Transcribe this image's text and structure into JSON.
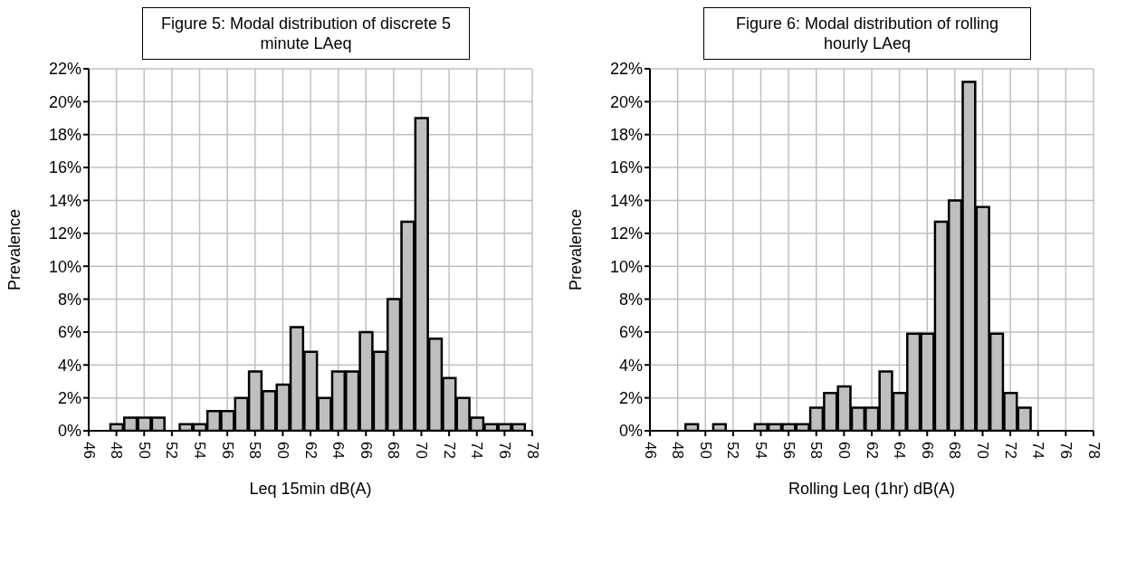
{
  "chart_data": [
    {
      "type": "histogram",
      "title": "Figure 5: Modal distribution of discrete 5 minute LAeq",
      "xlabel": "Leq 15min dB(A)",
      "ylabel": "Prevalence",
      "color": "#bfbfbf",
      "bins": [
        47.5,
        48.5,
        49.5,
        50.5,
        51.5,
        52.5,
        53.5,
        54.5,
        55.5,
        56.5,
        57.5,
        58.5,
        59.5,
        60.5,
        61.5,
        62.5,
        63.5,
        64.5,
        65.5,
        66.5,
        67.5,
        68.5,
        69.5,
        70.5,
        71.5,
        72.5,
        73.5,
        74.5,
        75.5,
        76.5,
        77.5
      ],
      "values": [
        0.4,
        0.8,
        0.8,
        0.8,
        0,
        0.4,
        0.4,
        1.2,
        1.2,
        2.0,
        3.6,
        2.4,
        2.8,
        6.3,
        4.8,
        2.0,
        3.6,
        3.6,
        6.0,
        4.8,
        8.0,
        12.7,
        19.0,
        5.6,
        3.2,
        2.0,
        0.8,
        0.4,
        0.4,
        0.4
      ],
      "xlim": [
        46,
        78
      ],
      "xticks": [
        46,
        48,
        50,
        52,
        54,
        56,
        58,
        60,
        62,
        64,
        66,
        68,
        70,
        72,
        74,
        76,
        78
      ],
      "ylim": [
        0,
        22
      ],
      "yticks": [
        {
          "value": 0,
          "label": "0%"
        },
        {
          "value": 2,
          "label": "2%"
        },
        {
          "value": 4,
          "label": "4%"
        },
        {
          "value": 6,
          "label": "6%"
        },
        {
          "value": 8,
          "label": "8%"
        },
        {
          "value": 10,
          "label": "10%"
        },
        {
          "value": 12,
          "label": "12%"
        },
        {
          "value": 14,
          "label": "14%"
        },
        {
          "value": 16,
          "label": "16%"
        },
        {
          "value": 18,
          "label": "18%"
        },
        {
          "value": 20,
          "label": "20%"
        },
        {
          "value": 22,
          "label": "22%"
        }
      ],
      "grid": true
    },
    {
      "type": "histogram",
      "title": "Figure 6: Modal distribution of rolling hourly LAeq",
      "xlabel": "Rolling Leq (1hr) dB(A)",
      "ylabel": "Prevalence",
      "color": "#bfbfbf",
      "bins": [
        48.5,
        49.5,
        50.5,
        51.5,
        52.5,
        53.5,
        54.5,
        55.5,
        56.5,
        57.5,
        58.5,
        59.5,
        60.5,
        61.5,
        62.5,
        63.5,
        64.5,
        65.5,
        66.5,
        67.5,
        68.5,
        69.5,
        70.5,
        71.5,
        72.5,
        73.5
      ],
      "values": [
        0.4,
        0,
        0.4,
        0,
        0,
        0.4,
        0.4,
        0.4,
        0.4,
        1.4,
        2.3,
        2.7,
        1.4,
        1.4,
        3.6,
        2.3,
        5.9,
        5.9,
        12.7,
        14.0,
        21.2,
        13.6,
        5.9,
        2.3,
        1.4
      ],
      "xlim": [
        46,
        78
      ],
      "xticks": [
        46,
        48,
        50,
        52,
        54,
        56,
        58,
        60,
        62,
        64,
        66,
        68,
        70,
        72,
        74,
        76,
        78
      ],
      "ylim": [
        0,
        22
      ],
      "yticks": [
        {
          "value": 0,
          "label": "0%"
        },
        {
          "value": 2,
          "label": "2%"
        },
        {
          "value": 4,
          "label": "4%"
        },
        {
          "value": 6,
          "label": "6%"
        },
        {
          "value": 8,
          "label": "8%"
        },
        {
          "value": 10,
          "label": "10%"
        },
        {
          "value": 12,
          "label": "12%"
        },
        {
          "value": 14,
          "label": "14%"
        },
        {
          "value": 16,
          "label": "16%"
        },
        {
          "value": 18,
          "label": "18%"
        },
        {
          "value": 20,
          "label": "20%"
        },
        {
          "value": 22,
          "label": "22%"
        }
      ],
      "grid": true
    }
  ]
}
